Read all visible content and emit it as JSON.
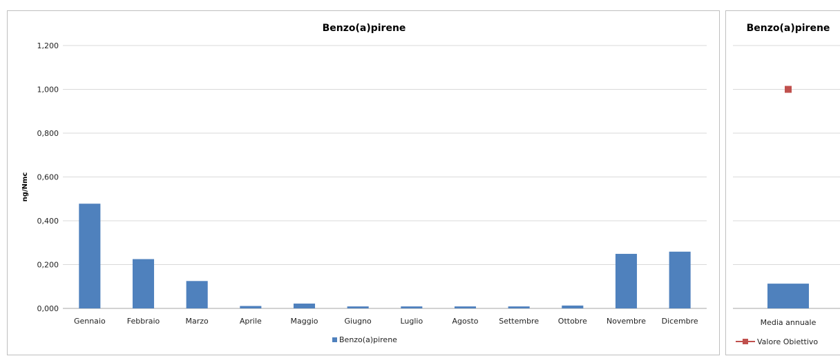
{
  "chart_data": [
    {
      "type": "bar",
      "title": "Benzo(a)pirene",
      "ylabel": "ng/Nmc",
      "xlabel": "",
      "ylim": [
        0,
        1.2
      ],
      "yticks": [
        0,
        0.2,
        0.4,
        0.6,
        0.8,
        1.0,
        1.2
      ],
      "ytick_labels": [
        "0,000",
        "0,200",
        "0,400",
        "0,600",
        "0,800",
        "1,000",
        "1,200"
      ],
      "grid": true,
      "legend": "bottom",
      "categories": [
        "Gennaio",
        "Febbraio",
        "Marzo",
        "Aprile",
        "Maggio",
        "Giugno",
        "Luglio",
        "Agosto",
        "Settembre",
        "Ottobre",
        "Novembre",
        "Dicembre"
      ],
      "series": [
        {
          "name": "Benzo(a)pirene",
          "color": "#4f81bd",
          "values": [
            0.478,
            0.225,
            0.125,
            0.011,
            0.022,
            0.009,
            0.009,
            0.009,
            0.009,
            0.013,
            0.249,
            0.259
          ]
        }
      ]
    },
    {
      "type": "bar",
      "title": "Benzo(a)pirene",
      "ylim": [
        0,
        1.2
      ],
      "yticks": [
        0,
        0.2,
        0.4,
        0.6,
        0.8,
        1.0,
        1.2
      ],
      "grid": true,
      "legend": "bottom",
      "categories": [
        "Media annuale"
      ],
      "series": [
        {
          "name": "",
          "kind": "bar",
          "color": "#4f81bd",
          "values": [
            0.113
          ]
        },
        {
          "name": "Valore Obiettivo",
          "kind": "line-marker",
          "color": "#c0504d",
          "values": [
            1.0
          ]
        }
      ]
    }
  ]
}
